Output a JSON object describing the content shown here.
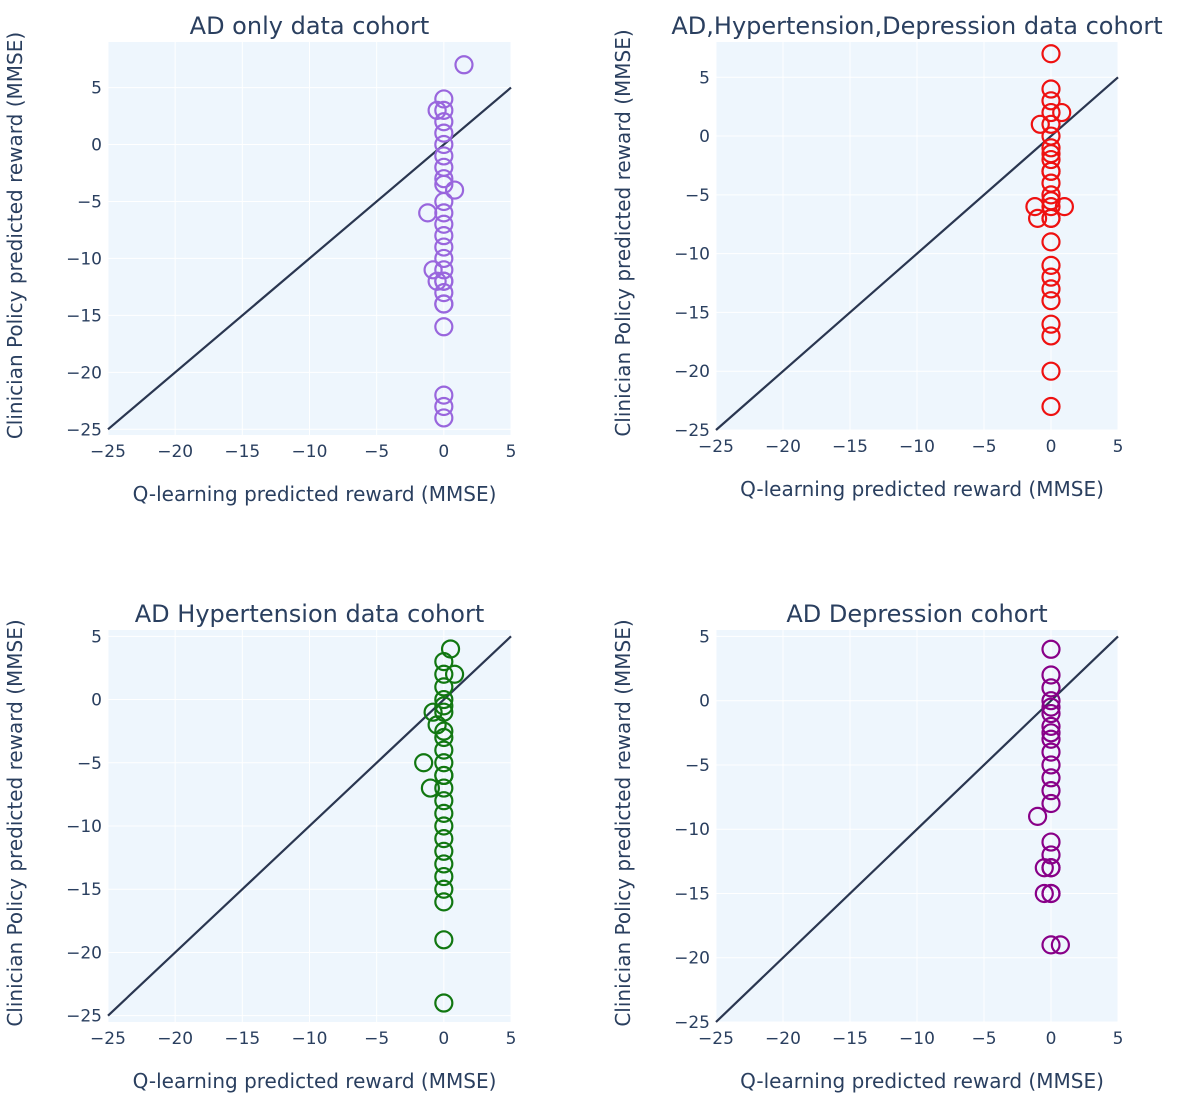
{
  "chart_data": [
    {
      "type": "scatter",
      "title": "AD only data cohort",
      "xlabel": "Q-learning predicted reward (MMSE)",
      "ylabel": "Clinician Policy predicted reward (MMSE)",
      "xlim": [
        -25,
        5
      ],
      "ylim": [
        -25.5,
        9
      ],
      "xticks": [
        -25,
        -20,
        -15,
        -10,
        -5,
        0,
        5
      ],
      "xtick_labels": [
        "−25",
        "−20",
        "−15",
        "−10",
        "−5",
        "0",
        "5"
      ],
      "yticks": [
        -25,
        -20,
        -15,
        -10,
        -5,
        0,
        5
      ],
      "ytick_labels": [
        "−25",
        "−20",
        "−15",
        "−10",
        "−5",
        "0",
        "5"
      ],
      "marker_color": "#9966dd",
      "series": [
        {
          "x": [
            1.5,
            0,
            -0.5,
            0,
            0,
            0,
            0,
            0,
            0,
            0,
            0,
            0.8,
            0,
            0,
            0,
            -1.2,
            0,
            0,
            0,
            0,
            0,
            -0.8,
            -0.5,
            0,
            0,
            0,
            0,
            0,
            0,
            0,
            0
          ],
          "y": [
            7,
            4,
            3,
            3,
            2,
            1,
            0,
            -1,
            -2,
            -3,
            -3.5,
            -4,
            -5,
            -6,
            -7,
            -6,
            -8,
            -9,
            -10,
            -11,
            -12,
            -11,
            -12,
            -12,
            -13,
            -14,
            -14,
            -16,
            -22,
            -23,
            -24
          ]
        }
      ],
      "diagonal": {
        "x": [
          -25,
          5
        ],
        "y": [
          -25,
          5
        ]
      }
    },
    {
      "type": "scatter",
      "title": "AD,Hypertension,Depression data cohort",
      "xlabel": "Q-learning predicted reward (MMSE)",
      "ylabel": "Clinician Policy predicted reward (MMSE)",
      "xlim": [
        -25,
        5
      ],
      "ylim": [
        -25,
        8
      ],
      "xticks": [
        -25,
        -20,
        -15,
        -10,
        -5,
        0,
        5
      ],
      "xtick_labels": [
        "−25",
        "−20",
        "−15",
        "−10",
        "−5",
        "0",
        "5"
      ],
      "yticks": [
        -25,
        -20,
        -15,
        -10,
        -5,
        0,
        5
      ],
      "ytick_labels": [
        "−25",
        "−20",
        "−15",
        "−10",
        "−5",
        "0",
        "5"
      ],
      "marker_color": "#ee1111",
      "series": [
        {
          "x": [
            0,
            0,
            0,
            0,
            0,
            0.8,
            -0.8,
            0,
            0,
            0,
            0,
            0,
            0,
            0,
            0,
            0,
            -1.2,
            -1.0,
            0,
            1.0,
            0,
            0,
            0,
            0,
            0,
            0,
            0,
            0,
            0,
            0,
            0
          ],
          "y": [
            7,
            4,
            3,
            2,
            1,
            2,
            1,
            0,
            -1,
            -2,
            -3,
            -4,
            -5,
            -5.5,
            -6,
            -7,
            -6,
            -7,
            -7,
            -6,
            -9,
            -11,
            -12,
            -13,
            -14,
            -16,
            -17,
            -20,
            -23,
            -1.5,
            -3
          ]
        }
      ],
      "diagonal": {
        "x": [
          -25,
          5
        ],
        "y": [
          -25,
          5
        ]
      }
    },
    {
      "type": "scatter",
      "title": "AD Hypertension data cohort",
      "xlabel": "Q-learning predicted reward (MMSE)",
      "ylabel": "Clinician Policy predicted reward (MMSE)",
      "xlim": [
        -25,
        5
      ],
      "ylim": [
        -25.5,
        5.5
      ],
      "xticks": [
        -25,
        -20,
        -15,
        -10,
        -5,
        0,
        5
      ],
      "xtick_labels": [
        "−25",
        "−20",
        "−15",
        "−10",
        "−5",
        "0",
        "5"
      ],
      "yticks": [
        -25,
        -20,
        -15,
        -10,
        -5,
        0,
        5
      ],
      "ytick_labels": [
        "−25",
        "−20",
        "−15",
        "−10",
        "−5",
        "0",
        "5"
      ],
      "marker_color": "#117711",
      "series": [
        {
          "x": [
            0.5,
            0,
            0,
            0.8,
            0,
            -0.8,
            0,
            0,
            -0.5,
            0,
            0,
            0,
            -1.5,
            0,
            0,
            -1.0,
            0,
            0,
            0,
            0,
            0,
            0,
            0,
            0,
            0,
            0,
            0,
            0,
            0,
            0
          ],
          "y": [
            4,
            3,
            2,
            2,
            1,
            -1,
            0,
            -1,
            -2,
            -3,
            -4,
            -5,
            -5,
            -6,
            -7,
            -7,
            -8,
            -9,
            -10,
            -11,
            -12,
            -13,
            -14,
            -15,
            -16,
            -19,
            -24,
            -0.5,
            -2.5,
            -6
          ]
        }
      ],
      "diagonal": {
        "x": [
          -25,
          5
        ],
        "y": [
          -25,
          5
        ]
      }
    },
    {
      "type": "scatter",
      "title": "AD Depression cohort",
      "xlabel": "Q-learning predicted reward (MMSE)",
      "ylabel": "Clinician Policy predicted reward (MMSE)",
      "xlim": [
        -25,
        5
      ],
      "ylim": [
        -25,
        5.5
      ],
      "xticks": [
        -25,
        -20,
        -15,
        -10,
        -5,
        0,
        5
      ],
      "xtick_labels": [
        "−25",
        "−20",
        "−15",
        "−10",
        "−5",
        "0",
        "5"
      ],
      "yticks": [
        -25,
        -20,
        -15,
        -10,
        -5,
        0,
        5
      ],
      "ytick_labels": [
        "−25",
        "−20",
        "−15",
        "−10",
        "−5",
        "0",
        "5"
      ],
      "marker_color": "#880088",
      "series": [
        {
          "x": [
            0,
            0,
            0,
            0,
            0,
            0,
            0,
            0,
            0,
            0,
            0,
            0,
            0,
            0,
            0,
            -1.0,
            0,
            0,
            0,
            -0.5,
            0,
            -0.5,
            0,
            0,
            0.7
          ],
          "y": [
            4,
            2,
            1,
            0,
            -1,
            -2,
            -3,
            -4,
            -5,
            -6,
            -7,
            -8,
            -11,
            -12,
            -13,
            -9,
            -13,
            -15,
            -15,
            -13,
            -19,
            -15,
            -2.5,
            -0.5,
            -19
          ]
        }
      ],
      "diagonal": {
        "x": [
          -25,
          5
        ],
        "y": [
          -25,
          5
        ]
      }
    }
  ],
  "colors": {
    "plot_background": "#eef6fd",
    "grid": "#ffffff",
    "diagonal_line": "#2a3650",
    "text": "#2a3f5f"
  }
}
